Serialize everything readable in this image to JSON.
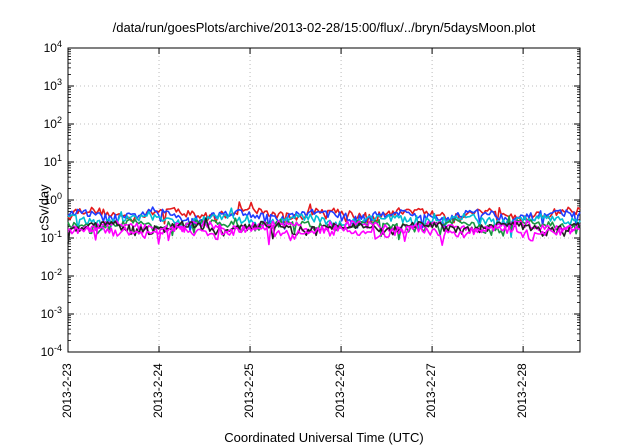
{
  "chart_data": {
    "type": "line",
    "title": "/data/run/goesPlots/archive/2013-02-28/15:00/flux/../bryn/5daysMoon.plot",
    "xlabel": "Coordinated Universal Time (UTC)",
    "ylabel": "cSv/day",
    "yscale": "log",
    "ylim": [
      0.0001,
      10000
    ],
    "ytick_labels": [
      {
        "base": "10",
        "exp": "4"
      },
      {
        "base": "10",
        "exp": "3"
      },
      {
        "base": "10",
        "exp": "2"
      },
      {
        "base": "10",
        "exp": "1"
      },
      {
        "base": "10",
        "exp": "0"
      },
      {
        "base": "10",
        "exp": "-1"
      },
      {
        "base": "10",
        "exp": "-2"
      },
      {
        "base": "10",
        "exp": "-3"
      },
      {
        "base": "10",
        "exp": "-4"
      }
    ],
    "xlim": [
      "2013-02-23",
      "2013-02-28 15:00"
    ],
    "xtick_labels": [
      "2013-2-23",
      "2013-2-24",
      "2013-2-25",
      "2013-2-26",
      "2013-2-27",
      "2013-2-28"
    ],
    "grid": true,
    "series": [
      {
        "color": "#e41a1c",
        "level": 0.45
      },
      {
        "color": "#1f3cff",
        "level": 0.4
      },
      {
        "color": "#00bcd4",
        "level": 0.3
      },
      {
        "color": "#1a9641",
        "level": 0.22
      },
      {
        "color": "#ff00ff",
        "level": 0.2
      },
      {
        "color": "#222222",
        "level": 0.19
      },
      {
        "color": "#ff00ff",
        "level": 0.15
      }
    ]
  }
}
